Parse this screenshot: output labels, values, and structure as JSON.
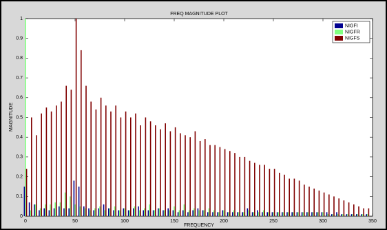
{
  "chart_data": {
    "type": "bar",
    "title": "FREQ MAGNITUDE PLOT",
    "xlabel": "FREQUENCY",
    "ylabel": "MAGNITUDE",
    "x": [
      0,
      5,
      10,
      15,
      20,
      25,
      30,
      35,
      40,
      45,
      50,
      55,
      60,
      65,
      70,
      75,
      80,
      85,
      90,
      95,
      100,
      105,
      110,
      115,
      120,
      125,
      130,
      135,
      140,
      145,
      150,
      155,
      160,
      165,
      170,
      175,
      180,
      185,
      190,
      195,
      200,
      205,
      210,
      215,
      220,
      225,
      230,
      235,
      240,
      245,
      250,
      255,
      260,
      265,
      270,
      275,
      280,
      285,
      290,
      295,
      300,
      305,
      310,
      315,
      320,
      325,
      330,
      335,
      340,
      345
    ],
    "series": [
      {
        "name": "NIGFI",
        "color": "#00008f",
        "values": [
          0.15,
          0.07,
          0.06,
          0.03,
          0.04,
          0.03,
          0.04,
          0.05,
          0.04,
          0.04,
          0.18,
          0.15,
          0.05,
          0.04,
          0.03,
          0.04,
          0.06,
          0.04,
          0.03,
          0.03,
          0.04,
          0.03,
          0.04,
          0.05,
          0.03,
          0.03,
          0.03,
          0.04,
          0.03,
          0.04,
          0.03,
          0.02,
          0.03,
          0.02,
          0.03,
          0.04,
          0.03,
          0.02,
          0.02,
          0.02,
          0.03,
          0.02,
          0.02,
          0.02,
          0.02,
          0.04,
          0.02,
          0.03,
          0.02,
          0.02,
          0.02,
          0.02,
          0.02,
          0.02,
          0.02,
          0.02,
          0.02,
          0.02,
          0.02,
          0.02,
          0.02,
          0.02,
          0.01,
          0.02,
          0.01,
          0.01,
          0.01,
          0.01,
          0.01,
          0.01
        ]
      },
      {
        "name": "NIGFR",
        "color": "#80ff80",
        "values": [
          1,
          0.03,
          0.06,
          0.04,
          0.06,
          0.06,
          0.07,
          0.07,
          0.12,
          0.1,
          0.06,
          0.05,
          0.04,
          0.03,
          0.04,
          0.05,
          0.03,
          0.04,
          0.05,
          0.03,
          0.04,
          0.03,
          0.05,
          0.03,
          0.04,
          0.06,
          0.03,
          0.04,
          0.03,
          0.03,
          0.05,
          0.03,
          0.06,
          0.03,
          0.04,
          0.03,
          0.03,
          0.04,
          0.03,
          0.02,
          0.03,
          0.02,
          0.03,
          0.02,
          0.02,
          0.03,
          0.02,
          0.02,
          0.03,
          0.02,
          0.02,
          0.02,
          0.02,
          0.02,
          0.02,
          0.02,
          0.02,
          0.02,
          0.02,
          0.02,
          0.02,
          0.01,
          0.01,
          0.01,
          0.01,
          0.01,
          0.01,
          0.01,
          0.01,
          0.01
        ]
      },
      {
        "name": "NIGFS",
        "color": "#800000",
        "values": [
          0.24,
          0.5,
          0.41,
          0.52,
          0.55,
          0.53,
          0.56,
          0.58,
          0.66,
          0.64,
          1,
          0.84,
          0.66,
          0.58,
          0.54,
          0.6,
          0.56,
          0.53,
          0.56,
          0.5,
          0.53,
          0.5,
          0.52,
          0.46,
          0.5,
          0.48,
          0.46,
          0.44,
          0.47,
          0.43,
          0.45,
          0.42,
          0.41,
          0.4,
          0.43,
          0.38,
          0.39,
          0.36,
          0.36,
          0.35,
          0.34,
          0.33,
          0.32,
          0.3,
          0.3,
          0.28,
          0.27,
          0.26,
          0.26,
          0.24,
          0.24,
          0.22,
          0.21,
          0.19,
          0.19,
          0.18,
          0.16,
          0.15,
          0.14,
          0.13,
          0.12,
          0.11,
          0.1,
          0.09,
          0.08,
          0.07,
          0.06,
          0.05,
          0.04,
          0.04
        ]
      }
    ],
    "xlim": [
      0,
      350
    ],
    "ylim": [
      0,
      1
    ],
    "xticks": [
      0,
      50,
      100,
      150,
      200,
      250,
      300,
      350
    ],
    "yticks": [
      0,
      0.1,
      0.2,
      0.3,
      0.4,
      0.5,
      0.6,
      0.7,
      0.8,
      0.9,
      1
    ],
    "legend": "northeast"
  }
}
